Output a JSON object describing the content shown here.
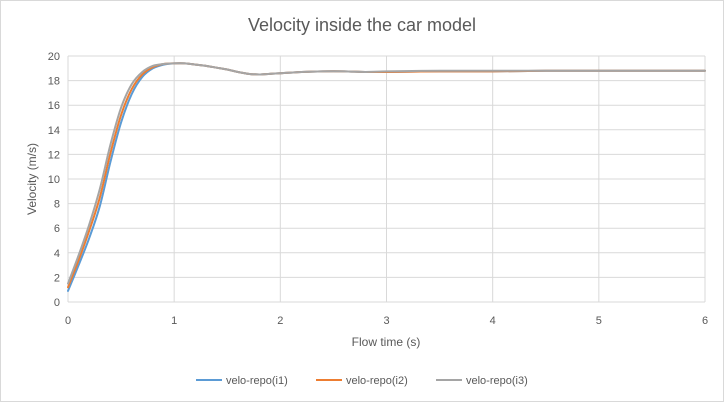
{
  "chart_data": {
    "type": "line",
    "title": "Velocity inside the car model",
    "xlabel": "Flow time (s)",
    "ylabel": "Velocity (m/s)",
    "xlim": [
      0,
      6
    ],
    "ylim": [
      0,
      20
    ],
    "xticks": [
      "0",
      "1",
      "2",
      "3",
      "4",
      "5",
      "6"
    ],
    "yticks": [
      "0",
      "2",
      "4",
      "6",
      "8",
      "10",
      "12",
      "14",
      "16",
      "18",
      "20"
    ],
    "grid": true,
    "legend_position": "bottom",
    "series": [
      {
        "name": "velo-repo(i1)",
        "color": "#5b9bd5",
        "x": [
          0,
          0.1,
          0.2,
          0.3,
          0.4,
          0.5,
          0.6,
          0.7,
          0.8,
          0.9,
          1.0,
          1.1,
          1.2,
          1.3,
          1.4,
          1.5,
          1.6,
          1.7,
          1.8,
          1.9,
          2.0,
          2.2,
          2.4,
          2.6,
          2.8,
          3.0,
          3.5,
          4.0,
          4.5,
          5.0,
          5.5,
          6.0
        ],
        "values": [
          0.9,
          3.0,
          5.2,
          7.8,
          11.4,
          14.6,
          16.9,
          18.3,
          19.0,
          19.3,
          19.4,
          19.4,
          19.3,
          19.2,
          19.05,
          18.9,
          18.7,
          18.55,
          18.5,
          18.55,
          18.6,
          18.7,
          18.75,
          18.75,
          18.7,
          18.7,
          18.75,
          18.75,
          18.8,
          18.8,
          18.8,
          18.8
        ]
      },
      {
        "name": "velo-repo(i2)",
        "color": "#ed7d31",
        "x": [
          0,
          0.1,
          0.2,
          0.3,
          0.4,
          0.5,
          0.6,
          0.7,
          0.8,
          0.9,
          1.0,
          1.1,
          1.2,
          1.3,
          1.4,
          1.5,
          1.6,
          1.7,
          1.8,
          1.9,
          2.0,
          2.2,
          2.4,
          2.6,
          2.8,
          3.0,
          3.5,
          4.0,
          4.5,
          5.0,
          5.5,
          6.0
        ],
        "values": [
          1.2,
          3.4,
          5.8,
          8.5,
          12.1,
          15.2,
          17.3,
          18.5,
          19.1,
          19.35,
          19.4,
          19.4,
          19.3,
          19.2,
          19.05,
          18.9,
          18.7,
          18.55,
          18.5,
          18.55,
          18.6,
          18.7,
          18.75,
          18.75,
          18.7,
          18.7,
          18.75,
          18.75,
          18.8,
          18.8,
          18.8,
          18.8
        ]
      },
      {
        "name": "velo-repo(i3)",
        "color": "#a5a5a5",
        "x": [
          0,
          0.1,
          0.2,
          0.3,
          0.4,
          0.5,
          0.6,
          0.7,
          0.8,
          0.9,
          1.0,
          1.1,
          1.2,
          1.3,
          1.4,
          1.5,
          1.6,
          1.7,
          1.8,
          1.9,
          2.0,
          2.2,
          2.4,
          2.6,
          2.8,
          3.0,
          3.5,
          4.0,
          4.5,
          5.0,
          5.5,
          6.0
        ],
        "values": [
          1.5,
          3.8,
          6.3,
          9.2,
          12.8,
          15.8,
          17.7,
          18.7,
          19.2,
          19.35,
          19.4,
          19.4,
          19.3,
          19.2,
          19.05,
          18.9,
          18.7,
          18.55,
          18.5,
          18.55,
          18.6,
          18.7,
          18.75,
          18.75,
          18.7,
          18.75,
          18.8,
          18.8,
          18.8,
          18.8,
          18.8,
          18.8
        ]
      }
    ]
  }
}
